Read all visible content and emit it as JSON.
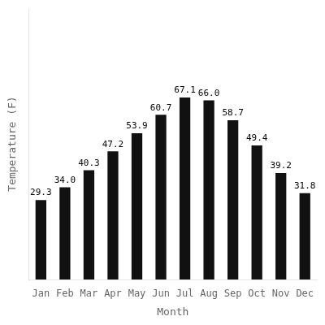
{
  "chart_data": {
    "type": "bar",
    "categories": [
      "Jan",
      "Feb",
      "Mar",
      "Apr",
      "May",
      "Jun",
      "Jul",
      "Aug",
      "Sep",
      "Oct",
      "Nov",
      "Dec"
    ],
    "values": [
      29.3,
      34.0,
      40.3,
      47.2,
      53.9,
      60.7,
      67.1,
      66.0,
      58.7,
      49.4,
      39.2,
      31.8
    ],
    "value_labels": [
      "29.3",
      "34.0",
      "40.3",
      "47.2",
      "53.9",
      "60.7",
      "67.1",
      "66.0",
      "58.7",
      "49.4",
      "39.2",
      "31.8"
    ],
    "color": "#111111",
    "xlabel": "Month",
    "ylabel": "Temperature (F)",
    "ylim": [
      0,
      100
    ],
    "grid": false,
    "data_labels": true,
    "tick_labels": "x"
  }
}
